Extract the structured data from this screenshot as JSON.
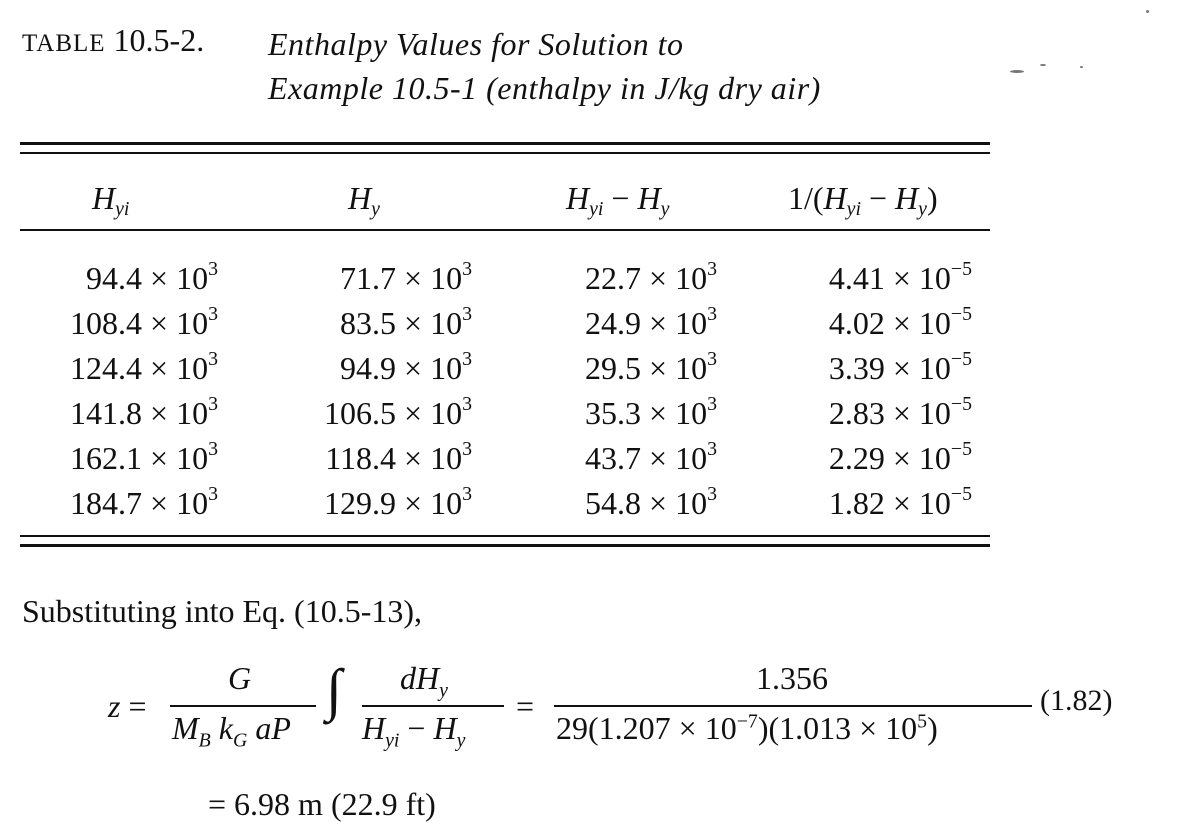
{
  "caption": {
    "label_prefix": "TABLE",
    "label_number": "10.5-2.",
    "title_line1": "Enthalpy Values for Solution to",
    "title_line2": "Example 10.5-1 (enthalpy in J/kg dry air)"
  },
  "table": {
    "headers": [
      {
        "base": "H",
        "sub": "yi"
      },
      {
        "base": "H",
        "sub": "y"
      },
      {
        "text": "H_yi − H_y"
      },
      {
        "text": "1/(H_yi − H_y)"
      }
    ],
    "rows": [
      [
        {
          "m": "94.4 × 10",
          "e": "3"
        },
        {
          "m": "71.7 × 10",
          "e": "3"
        },
        {
          "m": "22.7 × 10",
          "e": "3"
        },
        {
          "m": "4.41 × 10",
          "e": "−5"
        }
      ],
      [
        {
          "m": "108.4 × 10",
          "e": "3"
        },
        {
          "m": "83.5 × 10",
          "e": "3"
        },
        {
          "m": "24.9 × 10",
          "e": "3"
        },
        {
          "m": "4.02 × 10",
          "e": "−5"
        }
      ],
      [
        {
          "m": "124.4 × 10",
          "e": "3"
        },
        {
          "m": "94.9 × 10",
          "e": "3"
        },
        {
          "m": "29.5 × 10",
          "e": "3"
        },
        {
          "m": "3.39 × 10",
          "e": "−5"
        }
      ],
      [
        {
          "m": "141.8 × 10",
          "e": "3"
        },
        {
          "m": "106.5 × 10",
          "e": "3"
        },
        {
          "m": "35.3 × 10",
          "e": "3"
        },
        {
          "m": "2.83 × 10",
          "e": "−5"
        }
      ],
      [
        {
          "m": "162.1 × 10",
          "e": "3"
        },
        {
          "m": "118.4 × 10",
          "e": "3"
        },
        {
          "m": "43.7 × 10",
          "e": "3"
        },
        {
          "m": "2.29 × 10",
          "e": "−5"
        }
      ],
      [
        {
          "m": "184.7 × 10",
          "e": "3"
        },
        {
          "m": "129.9 × 10",
          "e": "3"
        },
        {
          "m": "54.8 × 10",
          "e": "3"
        },
        {
          "m": "1.82 × 10",
          "e": "−5"
        }
      ]
    ]
  },
  "body": {
    "substituting": "Substituting into Eq. (10.5-13),"
  },
  "equation": {
    "lhs": "z =",
    "frac1_num": "G",
    "integral": "∫",
    "frac2_num_d": "dH",
    "frac2_num_sub": "y",
    "eq_sign": "=",
    "frac3_num": "1.356",
    "frac3_den_a": "29(1.207 × 10",
    "frac3_den_a_exp": "−7",
    "frac3_den_b": ")(1.013 × 10",
    "frac3_den_b_exp": "5",
    "frac3_den_c": ")",
    "factor": "(1.82)",
    "result": "= 6.98 m (22.9 ft)"
  }
}
